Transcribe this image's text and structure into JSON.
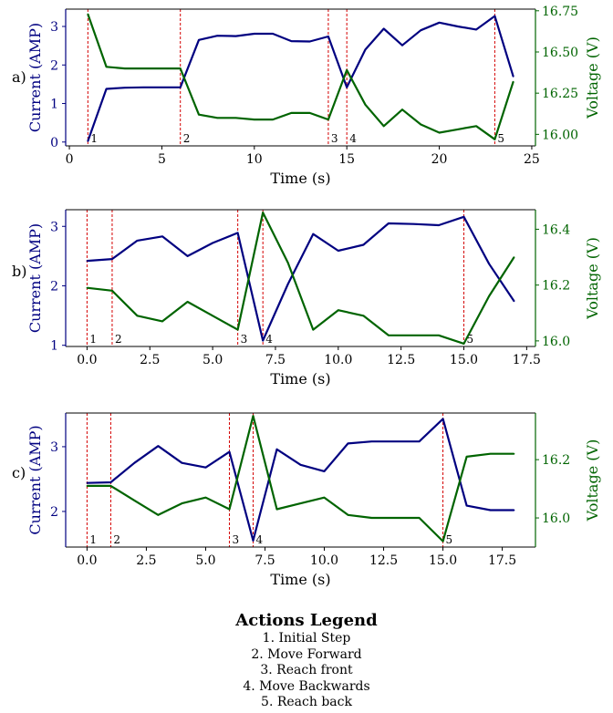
{
  "chart_data": [
    {
      "type": "line",
      "panel_label": "a)",
      "xlabel": "Time (s)",
      "ylabel_left": "Current (AMP)",
      "ylabel_right": "Voltage (V)",
      "xlim": [
        -0.2,
        25.2
      ],
      "ylim_left": [
        -0.1,
        3.45
      ],
      "ylim_right": [
        15.93,
        16.76
      ],
      "xticks": [
        0,
        5,
        10,
        15,
        20,
        25
      ],
      "xtick_labels": [
        "0",
        "5",
        "10",
        "15",
        "20",
        "25"
      ],
      "yticks_left": [
        0,
        1,
        2,
        3
      ],
      "yticks_left_labels": [
        "0",
        "1",
        "2",
        "3"
      ],
      "yticks_right": [
        16.0,
        16.25,
        16.5,
        16.75
      ],
      "yticks_right_labels": [
        "16.00",
        "16.25",
        "16.50",
        "16.75"
      ],
      "grid": false,
      "series": [
        {
          "axis": "left",
          "color": "#000080",
          "x": [
            1,
            2,
            3,
            4,
            5,
            6,
            7,
            8,
            9,
            10,
            11,
            12,
            13,
            14,
            15,
            16,
            17,
            18,
            19,
            20,
            21,
            22,
            23,
            24
          ],
          "values": [
            0.02,
            1.38,
            1.41,
            1.42,
            1.42,
            1.42,
            2.65,
            2.76,
            2.75,
            2.81,
            2.81,
            2.62,
            2.61,
            2.74,
            1.42,
            2.4,
            2.94,
            2.51,
            2.9,
            3.1,
            3.0,
            2.92,
            3.27,
            1.7
          ]
        },
        {
          "axis": "right",
          "color": "#006400",
          "x": [
            1,
            2,
            3,
            4,
            5,
            6,
            7,
            8,
            9,
            10,
            11,
            12,
            13,
            14,
            15,
            16,
            17,
            18,
            19,
            20,
            21,
            22,
            23,
            24
          ],
          "values": [
            16.73,
            16.41,
            16.4,
            16.4,
            16.4,
            16.4,
            16.12,
            16.1,
            16.1,
            16.09,
            16.09,
            16.13,
            16.13,
            16.09,
            16.39,
            16.18,
            16.05,
            16.15,
            16.06,
            16.01,
            16.03,
            16.05,
            15.97,
            16.32
          ]
        }
      ],
      "actions": [
        {
          "x": 1,
          "label": "1"
        },
        {
          "x": 6,
          "label": "2"
        },
        {
          "x": 14,
          "label": "3"
        },
        {
          "x": 15,
          "label": "4"
        },
        {
          "x": 23,
          "label": "5"
        }
      ]
    },
    {
      "type": "line",
      "panel_label": "b)",
      "xlabel": "Time (s)",
      "ylabel_left": "Current (AMP)",
      "ylabel_right": "Voltage (V)",
      "xlim": [
        -0.85,
        17.85
      ],
      "ylim_left": [
        0.98,
        3.28
      ],
      "ylim_right": [
        15.98,
        16.47
      ],
      "xticks": [
        0,
        2.5,
        5,
        7.5,
        10,
        12.5,
        15,
        17.5
      ],
      "xtick_labels": [
        "0.0",
        "2.5",
        "5.0",
        "7.5",
        "10.0",
        "12.5",
        "15.0",
        "17.5"
      ],
      "yticks_left": [
        1,
        2,
        3
      ],
      "yticks_left_labels": [
        "1",
        "2",
        "3"
      ],
      "yticks_right": [
        16.0,
        16.2,
        16.4
      ],
      "yticks_right_labels": [
        "16.0",
        "16.2",
        "16.4"
      ],
      "grid": false,
      "series": [
        {
          "axis": "left",
          "color": "#000080",
          "x": [
            0,
            1,
            2,
            3,
            4,
            5,
            6,
            7,
            8,
            9,
            10,
            11,
            12,
            13,
            14,
            15,
            16,
            17
          ],
          "values": [
            2.42,
            2.45,
            2.76,
            2.83,
            2.5,
            2.72,
            2.89,
            1.08,
            2.03,
            2.87,
            2.59,
            2.69,
            3.05,
            3.04,
            3.02,
            3.16,
            2.37,
            1.74
          ]
        },
        {
          "axis": "right",
          "color": "#006400",
          "x": [
            0,
            1,
            2,
            3,
            4,
            5,
            6,
            7,
            8,
            9,
            10,
            11,
            12,
            13,
            14,
            15,
            16,
            17
          ],
          "values": [
            16.19,
            16.18,
            16.09,
            16.07,
            16.14,
            16.09,
            16.04,
            16.46,
            16.28,
            16.04,
            16.11,
            16.09,
            16.02,
            16.02,
            16.02,
            15.99,
            16.16,
            16.3
          ]
        }
      ],
      "actions": [
        {
          "x": 0,
          "label": "1"
        },
        {
          "x": 1,
          "label": "2"
        },
        {
          "x": 6,
          "label": "3"
        },
        {
          "x": 7,
          "label": "4"
        },
        {
          "x": 15,
          "label": "5"
        }
      ]
    },
    {
      "type": "line",
      "panel_label": "c)",
      "xlabel": "Time (s)",
      "ylabel_left": "Current (AMP)",
      "ylabel_right": "Voltage (V)",
      "xlim": [
        -0.9,
        18.9
      ],
      "ylim_left": [
        1.45,
        3.52
      ],
      "ylim_right": [
        15.9,
        16.36
      ],
      "xticks": [
        0,
        2.5,
        5,
        7.5,
        10,
        12.5,
        15,
        17.5
      ],
      "xtick_labels": [
        "0.0",
        "2.5",
        "5.0",
        "7.5",
        "10.0",
        "12.5",
        "15.0",
        "17.5"
      ],
      "yticks_left": [
        2,
        3
      ],
      "yticks_left_labels": [
        "2",
        "3"
      ],
      "yticks_right": [
        16.0,
        16.2
      ],
      "yticks_right_labels": [
        "16.0",
        "16.2"
      ],
      "grid": false,
      "series": [
        {
          "axis": "left",
          "color": "#000080",
          "x": [
            0,
            1,
            2,
            3,
            4,
            5,
            6,
            7,
            8,
            9,
            10,
            11,
            12,
            13,
            14,
            15,
            16,
            17,
            18
          ],
          "values": [
            2.44,
            2.45,
            2.75,
            3.01,
            2.75,
            2.68,
            2.92,
            1.55,
            2.96,
            2.72,
            2.62,
            3.05,
            3.08,
            3.08,
            3.08,
            3.43,
            2.09,
            2.02,
            2.02
          ]
        },
        {
          "axis": "right",
          "color": "#006400",
          "x": [
            0,
            1,
            2,
            3,
            4,
            5,
            6,
            7,
            8,
            9,
            10,
            11,
            12,
            13,
            14,
            15,
            16,
            17,
            18
          ],
          "values": [
            16.11,
            16.11,
            16.06,
            16.01,
            16.05,
            16.07,
            16.03,
            16.35,
            16.03,
            16.05,
            16.07,
            16.01,
            16.0,
            16.0,
            16.0,
            15.92,
            16.21,
            16.22,
            16.22
          ]
        }
      ],
      "actions": [
        {
          "x": 0,
          "label": "1"
        },
        {
          "x": 1,
          "label": "2"
        },
        {
          "x": 6,
          "label": "3"
        },
        {
          "x": 7,
          "label": "4"
        },
        {
          "x": 15,
          "label": "5"
        }
      ]
    }
  ],
  "legend": {
    "title": "Actions Legend",
    "items": [
      "1. Initial Step",
      "2. Move Forward",
      "3. Reach front",
      "4. Move Backwards",
      "5. Reach back"
    ]
  },
  "colors": {
    "current": "#000080",
    "voltage": "#006400",
    "action_line": "#d40000"
  }
}
